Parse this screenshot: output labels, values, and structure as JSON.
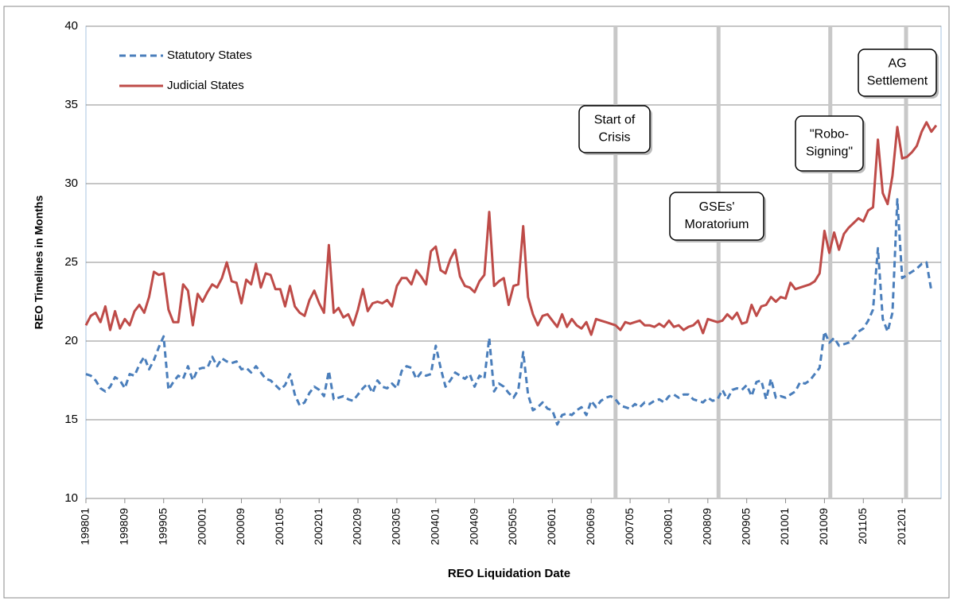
{
  "chart_data": {
    "type": "line",
    "xlabel": "REO Liquidation Date",
    "ylabel": "REO Timelines in Months",
    "ylim": [
      10,
      40
    ],
    "yticks": [
      10,
      15,
      20,
      25,
      30,
      35,
      40
    ],
    "grid": true,
    "legend": "upper left",
    "categories": [
      "199801",
      null,
      null,
      null,
      null,
      null,
      null,
      null,
      "199809",
      null,
      null,
      null,
      null,
      null,
      null,
      null,
      "199905",
      null,
      null,
      null,
      null,
      null,
      null,
      null,
      "200001",
      null,
      null,
      null,
      null,
      null,
      null,
      null,
      "200009",
      null,
      null,
      null,
      null,
      null,
      null,
      null,
      "200105",
      null,
      null,
      null,
      null,
      null,
      null,
      null,
      "200201",
      null,
      null,
      null,
      null,
      null,
      null,
      null,
      "200209",
      null,
      null,
      null,
      null,
      null,
      null,
      null,
      "200305",
      null,
      null,
      null,
      null,
      null,
      null,
      null,
      "200401",
      null,
      null,
      null,
      null,
      null,
      null,
      null,
      "200409",
      null,
      null,
      null,
      null,
      null,
      null,
      null,
      "200505",
      null,
      null,
      null,
      null,
      null,
      null,
      null,
      "200601",
      null,
      null,
      null,
      null,
      null,
      null,
      null,
      "200609",
      null,
      null,
      null,
      null,
      null,
      null,
      null,
      "200705",
      null,
      null,
      null,
      null,
      null,
      null,
      null,
      "200801",
      null,
      null,
      null,
      null,
      null,
      null,
      null,
      "200809",
      null,
      null,
      null,
      null,
      null,
      null,
      null,
      "200905",
      null,
      null,
      null,
      null,
      null,
      null,
      null,
      "201001",
      null,
      null,
      null,
      null,
      null,
      null,
      null,
      "201009",
      null,
      null,
      null,
      null,
      null,
      null,
      null,
      "201105",
      null,
      null,
      null,
      null,
      null,
      null,
      null,
      "201201",
      null,
      null,
      null,
      null,
      null,
      null,
      null
    ],
    "series": [
      {
        "name": "Statutory States",
        "color": "#4a7ebb",
        "dashed": true,
        "values": [
          17.9,
          17.8,
          17.5,
          17.0,
          16.8,
          17.1,
          17.7,
          17.5,
          17.0,
          17.9,
          17.8,
          18.5,
          19.0,
          18.2,
          18.8,
          19.6,
          20.3,
          16.9,
          17.4,
          17.8,
          17.6,
          18.4,
          17.5,
          18.2,
          18.3,
          18.3,
          19.0,
          18.4,
          18.9,
          18.7,
          18.6,
          18.7,
          18.2,
          18.3,
          18.0,
          18.4,
          18.0,
          17.6,
          17.5,
          17.2,
          16.9,
          17.2,
          17.9,
          16.6,
          15.9,
          16.1,
          16.7,
          17.1,
          16.9,
          16.5,
          18.1,
          16.3,
          16.4,
          16.5,
          16.3,
          16.2,
          16.6,
          17.0,
          17.3,
          16.7,
          17.5,
          17.1,
          17.0,
          17.3,
          17.0,
          18.1,
          18.4,
          18.3,
          17.6,
          18.0,
          17.8,
          17.9,
          19.7,
          18.3,
          17.1,
          17.5,
          18.0,
          17.8,
          17.6,
          17.9,
          17.1,
          17.8,
          17.6,
          20.2,
          16.8,
          17.3,
          17.1,
          16.7,
          16.4,
          16.9,
          19.3,
          16.6,
          15.6,
          15.8,
          16.1,
          15.7,
          15.6,
          14.7,
          15.3,
          15.4,
          15.3,
          15.6,
          15.8,
          15.3,
          16.2,
          15.8,
          16.2,
          16.4,
          16.5,
          16.3,
          15.9,
          15.8,
          15.7,
          16.0,
          15.8,
          16.1,
          16.0,
          16.2,
          16.3,
          16.1,
          16.5,
          16.6,
          16.4,
          16.6,
          16.6,
          16.3,
          16.2,
          16.1,
          16.4,
          16.2,
          16.3,
          16.9,
          16.3,
          16.9,
          17.0,
          16.9,
          17.2,
          16.5,
          17.4,
          17.5,
          16.3,
          17.6,
          16.4,
          16.5,
          16.4,
          16.6,
          16.8,
          17.4,
          17.3,
          17.5,
          17.9,
          18.3,
          20.6,
          19.9,
          20.2,
          19.7,
          19.8,
          19.9,
          20.2,
          20.6,
          20.8,
          21.3,
          22.0,
          25.9,
          21.4,
          20.6,
          21.8,
          29.0,
          24.0,
          24.2,
          24.4,
          24.6,
          24.9,
          25.0,
          23.2,
          null
        ]
      },
      {
        "name": "Judicial States",
        "color": "#be4b48",
        "dashed": false,
        "values": [
          21.0,
          21.6,
          21.8,
          21.2,
          22.2,
          20.7,
          21.9,
          20.8,
          21.4,
          21.0,
          21.9,
          22.3,
          21.8,
          22.8,
          24.4,
          24.2,
          24.3,
          22.0,
          21.2,
          21.2,
          23.6,
          23.2,
          21.0,
          23.0,
          22.5,
          23.1,
          23.6,
          23.4,
          24.0,
          25.0,
          23.8,
          23.7,
          22.4,
          23.9,
          23.6,
          24.9,
          23.4,
          24.3,
          24.2,
          23.3,
          23.3,
          22.2,
          23.5,
          22.2,
          21.8,
          21.6,
          22.6,
          23.2,
          22.4,
          21.8,
          26.1,
          21.8,
          22.1,
          21.5,
          21.7,
          21.0,
          22.0,
          23.3,
          21.9,
          22.4,
          22.5,
          22.4,
          22.6,
          22.2,
          23.5,
          24.0,
          24.0,
          23.6,
          24.5,
          24.1,
          23.6,
          25.7,
          26.0,
          24.5,
          24.3,
          25.2,
          25.8,
          24.1,
          23.5,
          23.4,
          23.1,
          23.8,
          24.2,
          28.2,
          23.5,
          23.8,
          24.0,
          22.3,
          23.5,
          23.6,
          27.3,
          22.8,
          21.7,
          21.0,
          21.6,
          21.7,
          21.3,
          20.9,
          21.7,
          20.9,
          21.4,
          21.0,
          20.8,
          21.2,
          20.4,
          21.4,
          21.3,
          21.2,
          21.1,
          21.0,
          20.7,
          21.2,
          21.1,
          21.2,
          21.3,
          21.0,
          21.0,
          20.9,
          21.1,
          20.9,
          21.3,
          20.9,
          21.0,
          20.7,
          20.9,
          21.0,
          21.3,
          20.5,
          21.4,
          21.3,
          21.2,
          21.3,
          21.7,
          21.4,
          21.8,
          21.1,
          21.2,
          22.3,
          21.6,
          22.2,
          22.3,
          22.8,
          22.5,
          22.8,
          22.7,
          23.7,
          23.3,
          23.4,
          23.5,
          23.6,
          23.8,
          24.3,
          27.0,
          25.6,
          26.9,
          25.8,
          26.8,
          27.2,
          27.5,
          27.8,
          27.6,
          28.3,
          28.5,
          32.8,
          29.4,
          28.7,
          30.5,
          33.6,
          31.6,
          31.7,
          32.0,
          32.4,
          33.3,
          33.9,
          33.3,
          33.7
        ]
      }
    ],
    "annotations": [
      {
        "lines": [
          "Start of",
          "Crisis"
        ]
      },
      {
        "lines": [
          "GSEs'",
          "Moratorium"
        ]
      },
      {
        "lines": [
          "\"Robo-",
          "Signing\""
        ]
      },
      {
        "lines": [
          "AG",
          "Settlement"
        ]
      }
    ]
  }
}
